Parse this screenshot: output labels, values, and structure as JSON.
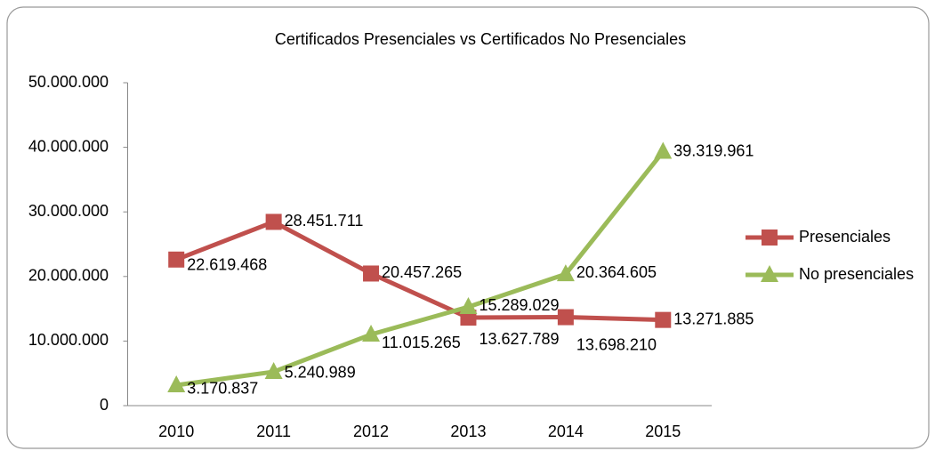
{
  "chart_data": {
    "type": "line",
    "title": "Certificados Presenciales vs Certificados No Presenciales",
    "categories": [
      "2010",
      "2011",
      "2012",
      "2013",
      "2014",
      "2015"
    ],
    "series": [
      {
        "name": "Presenciales",
        "color": "#c0504d",
        "marker": "square",
        "values": [
          22619468,
          28451711,
          20457265,
          13627789,
          13698210,
          13271885
        ],
        "value_labels": [
          "22.619.468",
          "28.451.711",
          "20.457.265",
          "13.627.789",
          "13.698.210",
          "13.271.885"
        ]
      },
      {
        "name": "No presenciales",
        "color": "#9bbb59",
        "marker": "triangle",
        "values": [
          3170837,
          5240989,
          11015265,
          15289029,
          20364605,
          39319961
        ],
        "value_labels": [
          "3.170.837",
          "5.240.989",
          "11.015.265",
          "15.289.029",
          "20.364.605",
          "39.319.961"
        ]
      }
    ],
    "ylim": [
      0,
      50000000
    ],
    "yticks": [
      0,
      {
        "value": 10000000,
        "label": "10.000.000"
      },
      {
        "value": 20000000,
        "label": "20.000.000"
      },
      {
        "value": 30000000,
        "label": "30.000.000"
      },
      {
        "value": 40000000,
        "label": "40.000.000"
      },
      {
        "value": 50000000,
        "label": "50.000.000"
      }
    ],
    "legend": "right"
  }
}
